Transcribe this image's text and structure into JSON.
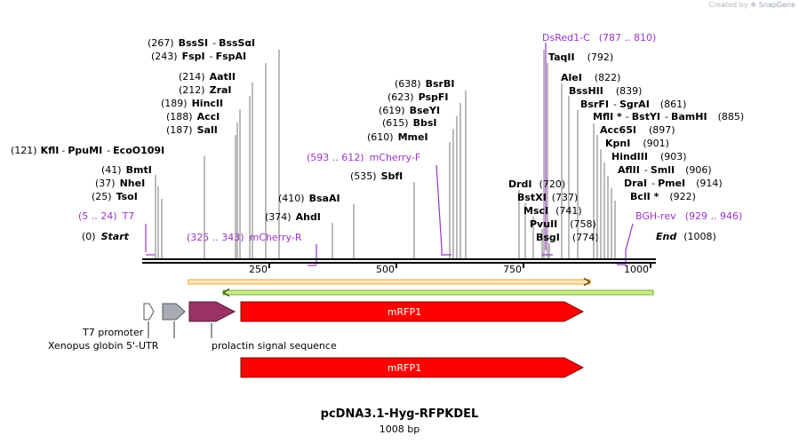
{
  "credit": {
    "prefix": "Created by",
    "brand": "SnapGene"
  },
  "map": {
    "title": "pcDNA3.1-Hyg-RFPKDEL",
    "length_label": "1008 bp"
  },
  "enzymes": {
    "kfli": {
      "pos": "(121)",
      "name": "KflI"
    },
    "ppumi": {
      "name": "PpuMI"
    },
    "ecoo109i": {
      "name": "EcoO109I"
    },
    "bmti": {
      "pos": "(41)",
      "name": "BmtI"
    },
    "nhei": {
      "pos": "(37)",
      "name": "NheI"
    },
    "tsoi": {
      "pos": "(25)",
      "name": "TsoI"
    },
    "start": {
      "pos": "(0)",
      "name": "Start"
    },
    "bsssi": {
      "pos": "(267)",
      "name": "BssSI"
    },
    "bsssai": {
      "name": "BssSαI"
    },
    "fspi": {
      "pos": "(243)",
      "name": "FspI"
    },
    "fspai": {
      "name": "FspAI"
    },
    "aatii": {
      "pos": "(214)",
      "name": "AatII"
    },
    "zrai": {
      "pos": "(212)",
      "name": "ZraI"
    },
    "hincii": {
      "pos": "(189)",
      "name": "HincII"
    },
    "acci": {
      "pos": "(188)",
      "name": "AccI"
    },
    "sali": {
      "pos": "(187)",
      "name": "SalI"
    },
    "bsaai": {
      "pos": "(410)",
      "name": "BsaAI"
    },
    "ahdi": {
      "pos": "(374)",
      "name": "AhdI"
    },
    "sbfi": {
      "pos": "(535)",
      "name": "SbfI"
    },
    "bsrbi": {
      "pos": "(638)",
      "name": "BsrBI"
    },
    "pspfi": {
      "pos": "(623)",
      "name": "PspFI"
    },
    "bseyi": {
      "pos": "(619)",
      "name": "BseYI"
    },
    "bbsi": {
      "pos": "(615)",
      "name": "BbsI"
    },
    "mmei": {
      "pos": "(610)",
      "name": "MmeI"
    },
    "taqii": {
      "name": "TaqII",
      "pos": "(792)"
    },
    "alei": {
      "name": "AleI",
      "pos": "(822)"
    },
    "bsshii": {
      "name": "BssHII",
      "pos": "(839)"
    },
    "bsrfi": {
      "name": "BsrFI"
    },
    "sgrai": {
      "name": "SgrAI",
      "pos": "(861)"
    },
    "mfli": {
      "name": "MflI *"
    },
    "bstyi": {
      "name": "BstYI"
    },
    "bamhi": {
      "name": "BamHI",
      "pos": "(885)"
    },
    "acc65i": {
      "name": "Acc65I",
      "pos": "(897)"
    },
    "kpni": {
      "name": "KpnI",
      "pos": "(901)"
    },
    "hindiii": {
      "name": "HindIII",
      "pos": "(903)"
    },
    "aflii": {
      "name": "AflII"
    },
    "smli": {
      "name": "SmlI",
      "pos": "(906)"
    },
    "drai": {
      "name": "DraI"
    },
    "pmei": {
      "name": "PmeI",
      "pos": "(914)"
    },
    "bcli": {
      "name": "BclI *",
      "pos": "(922)"
    },
    "drdi": {
      "name": "DrdI",
      "pos": "(720)"
    },
    "bstxi": {
      "name": "BstXI",
      "pos": "(737)"
    },
    "msci": {
      "name": "MscI",
      "pos": "(741)"
    },
    "pvuii": {
      "name": "PvuII",
      "pos": "(758)"
    },
    "bsgi": {
      "name": "BsgI",
      "pos": "(774)"
    },
    "end": {
      "name": "End",
      "pos": "(1008)"
    }
  },
  "primers": {
    "t7": {
      "range": "(5 .. 24)",
      "name": "T7"
    },
    "mcherry_r": {
      "range": "(325 .. 343)",
      "name": "mCherry-R"
    },
    "mcherry_f": {
      "range": "(593 .. 612)",
      "name": "mCherry-F"
    },
    "dsred1_c": {
      "name": "DsRed1-C",
      "range": "(787 .. 810)"
    },
    "bgh_rev": {
      "name": "BGH-rev",
      "range": "(929 .. 946)"
    }
  },
  "ruler": {
    "ticks": [
      "250",
      "500",
      "750",
      "1000"
    ]
  },
  "features": {
    "mrfp1_a": "mRFP1",
    "mrfp1_b": "mRFP1",
    "t7_promoter": "T7 promoter",
    "xenopus": "Xenopus globin 5'-UTR",
    "prolactin": "prolactin signal sequence"
  },
  "colors": {
    "primer": "#9b33c9",
    "mrfp1": "#ff0000",
    "prolactin": "#993366",
    "utr": "#a8adb3",
    "orf_orange": "#e8a33c",
    "orf_green": "#99cc33"
  }
}
